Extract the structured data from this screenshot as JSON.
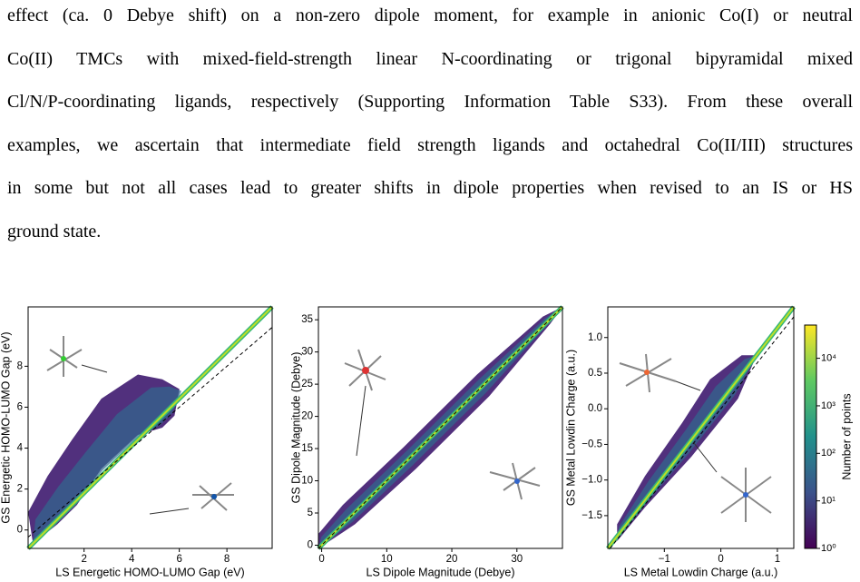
{
  "text_lines": [
    "effect (ca. 0 Debye shift) on a non-zero dipole moment, for example in anionic Co(I) or neutral",
    "Co(II) TMCs with mixed-field-strength linear N-coordinating or trigonal bipyramidal mixed",
    "Cl/N/P-coordinating ligands, respectively (Supporting Information Table S33). From these overall",
    "examples, we ascertain that intermediate field strength ligands and octahedral Co(II/III) structures",
    "in some but not all cases lead to greater shifts in dipole properties when revised to an IS or HS",
    "ground state."
  ],
  "figure": {
    "panels": [
      {
        "type": "hist2d",
        "xlabel": "LS Energetic HOMO-LUMO Gap (eV)",
        "ylabel": "GS Energetic HOMO-LUMO Gap (eV)",
        "xlim": [
          -0.35,
          9.9
        ],
        "ylim": [
          -0.9,
          10.9
        ],
        "xticks": [
          2,
          4,
          6,
          8
        ],
        "yticks": [
          0,
          2,
          4,
          6,
          8
        ]
      },
      {
        "type": "hist2d",
        "xlabel": "LS Dipole Magnitude (Debye)",
        "ylabel": "GS Dipole Magnitude (Debye)",
        "xlim": [
          -0.5,
          37
        ],
        "ylim": [
          -0.5,
          37
        ],
        "xticks": [
          0,
          10,
          20,
          30
        ],
        "yticks": [
          0,
          5,
          10,
          15,
          20,
          25,
          30,
          35
        ]
      },
      {
        "type": "hist2d",
        "xlabel": "LS Metal Lowdin Charge (a.u.)",
        "ylabel": "GS Metal Lowdin Charge (a.u.)",
        "xlim": [
          -2.0,
          1.29
        ],
        "ylim": [
          -1.96,
          1.43
        ],
        "xticks": [
          {
            "value": -1,
            "label": "−1"
          },
          0,
          1
        ],
        "yticks": [
          {
            "value": 1.0,
            "label": "1.0"
          },
          {
            "value": 0.5,
            "label": "0.5"
          },
          {
            "value": 0.0,
            "label": "0.0"
          },
          {
            "value": -0.5,
            "label": "−0.5"
          },
          {
            "value": -1.0,
            "label": "−1.0"
          },
          {
            "value": -1.5,
            "label": "−1.5"
          }
        ]
      }
    ],
    "colorbar": {
      "label": "Number of points",
      "log": true,
      "lim": [
        1,
        50000
      ],
      "ticks": [
        {
          "value": 1,
          "label": "10⁰"
        },
        {
          "value": 10,
          "label": "10¹"
        },
        {
          "value": 100,
          "label": "10²"
        },
        {
          "value": 1000,
          "label": "10³"
        },
        {
          "value": 10000,
          "label": "10⁴"
        }
      ]
    }
  }
}
